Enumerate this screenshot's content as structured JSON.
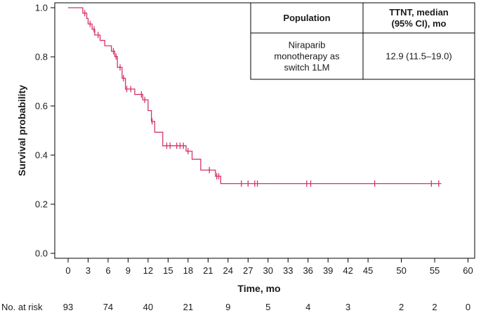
{
  "chart_data": {
    "type": "line",
    "subtype": "kaplan-meier",
    "xlabel": "Time, mo",
    "ylabel": "Survival probability",
    "xlim": [
      -2,
      61
    ],
    "ylim": [
      -0.02,
      1.02
    ],
    "x_ticks": [
      "0",
      "3",
      "6",
      "9",
      "12",
      "15",
      "18",
      "21",
      "24",
      "27",
      "30",
      "33",
      "36",
      "39",
      "42",
      "45",
      "50",
      "55",
      "60"
    ],
    "x_tick_values": [
      0,
      3,
      6,
      9,
      12,
      15,
      18,
      21,
      24,
      27,
      30,
      33,
      36,
      39,
      42,
      45,
      50,
      55,
      60
    ],
    "y_ticks": [
      "0.0",
      "0.2",
      "0.4",
      "0.6",
      "0.8",
      "1.0"
    ],
    "y_tick_values": [
      0,
      0.2,
      0.4,
      0.6,
      0.8,
      1.0
    ],
    "curve_color": "#d6336c",
    "series": [
      {
        "x": [
          0,
          2.2,
          2.8,
          3.0,
          3.6,
          4.0,
          4.8,
          5.5,
          6.5,
          7.0,
          7.4,
          8.1,
          8.6,
          10.0,
          11.2,
          12.0,
          12.5,
          13.0,
          14.2,
          17.7,
          18.6,
          19.9,
          22.1,
          22.9,
          56
        ],
        "y": [
          1.0,
          0.978,
          0.956,
          0.934,
          0.912,
          0.889,
          0.867,
          0.845,
          0.823,
          0.801,
          0.757,
          0.713,
          0.669,
          0.647,
          0.625,
          0.581,
          0.537,
          0.493,
          0.438,
          0.416,
          0.383,
          0.339,
          0.314,
          0.284,
          0.284
        ],
        "censor_x": [
          2.5,
          3.3,
          3.9,
          4.5,
          6.8,
          7.2,
          7.8,
          8.3,
          8.8,
          9.4,
          11.0,
          11.5,
          12.6,
          14.8,
          15.3,
          16.3,
          16.8,
          17.3,
          18.0,
          21.2,
          22.3,
          22.6,
          26.0,
          27.0,
          28.0,
          28.4,
          35.8,
          36.4,
          46.0,
          54.5,
          55.6
        ]
      }
    ],
    "risk_table": {
      "label": "No. at risk",
      "times": [
        0,
        6,
        12,
        18,
        24,
        30,
        36,
        42,
        50,
        55
      ],
      "counts": [
        "93",
        "74",
        "40",
        "21",
        "9",
        "5",
        "4",
        "3",
        "2",
        "2"
      ],
      "final_count": "0",
      "final_time": 60
    },
    "legend_table": {
      "headers": [
        "Population",
        "TTNT, median (95% CI), mo"
      ],
      "header_lines": [
        [
          "Population"
        ],
        [
          "TTNT, median",
          "(95% CI), mo"
        ]
      ],
      "row_lines": [
        [
          "Niraparib",
          "monotherapy as",
          "switch 1LM"
        ],
        [
          "12.9 (11.5–19.0)"
        ]
      ]
    }
  }
}
